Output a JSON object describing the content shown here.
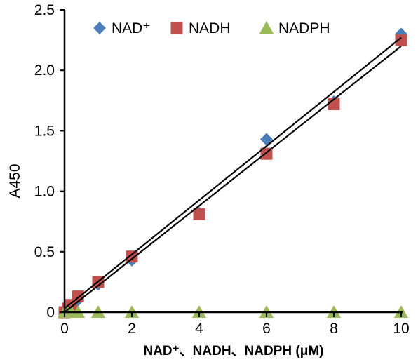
{
  "chart_data": {
    "type": "scatter",
    "title": "",
    "xlabel": "NAD⁺、NADH、NADPH (μM)",
    "ylabel": "A450",
    "xlim": [
      0,
      10
    ],
    "ylim": [
      0,
      2.5
    ],
    "x_ticks": [
      0,
      2,
      4,
      6,
      8,
      10
    ],
    "x_tick_labels": [
      "0",
      "2",
      "4",
      "6",
      "8",
      "10"
    ],
    "y_ticks": [
      0,
      0.5,
      1.0,
      1.5,
      2.0,
      2.5
    ],
    "y_tick_labels": [
      "0",
      "0.5",
      "1.0",
      "1.5",
      "2.0",
      "2.5"
    ],
    "grid": false,
    "legend_position": "top",
    "series": [
      {
        "name": "NAD⁺",
        "marker": "diamond",
        "color": "#4a7ebb",
        "x": [
          0,
          0.1,
          0.2,
          0.4,
          1,
          2,
          4,
          6,
          8,
          10
        ],
        "y": [
          0.0,
          0.03,
          0.05,
          0.1,
          0.23,
          0.43,
          0.82,
          1.43,
          1.74,
          2.3
        ],
        "trendline": [
          [
            0,
            0.03
          ],
          [
            10,
            2.27
          ]
        ]
      },
      {
        "name": "NADH",
        "marker": "square",
        "color": "#c0504d",
        "x": [
          0,
          0.1,
          0.2,
          0.4,
          1,
          2,
          4,
          6,
          8,
          10
        ],
        "y": [
          0.0,
          0.03,
          0.06,
          0.13,
          0.25,
          0.46,
          0.81,
          1.31,
          1.72,
          2.25
        ],
        "trendline": [
          [
            0,
            0.0
          ],
          [
            10,
            2.2
          ]
        ]
      },
      {
        "name": "NADPH",
        "marker": "triangle",
        "color": "#9bbb59",
        "x": [
          0,
          0.1,
          0.2,
          0.4,
          1,
          2,
          4,
          6,
          8,
          10
        ],
        "y": [
          0,
          0,
          0,
          0,
          0,
          0,
          0,
          0,
          0,
          0
        ]
      }
    ]
  }
}
